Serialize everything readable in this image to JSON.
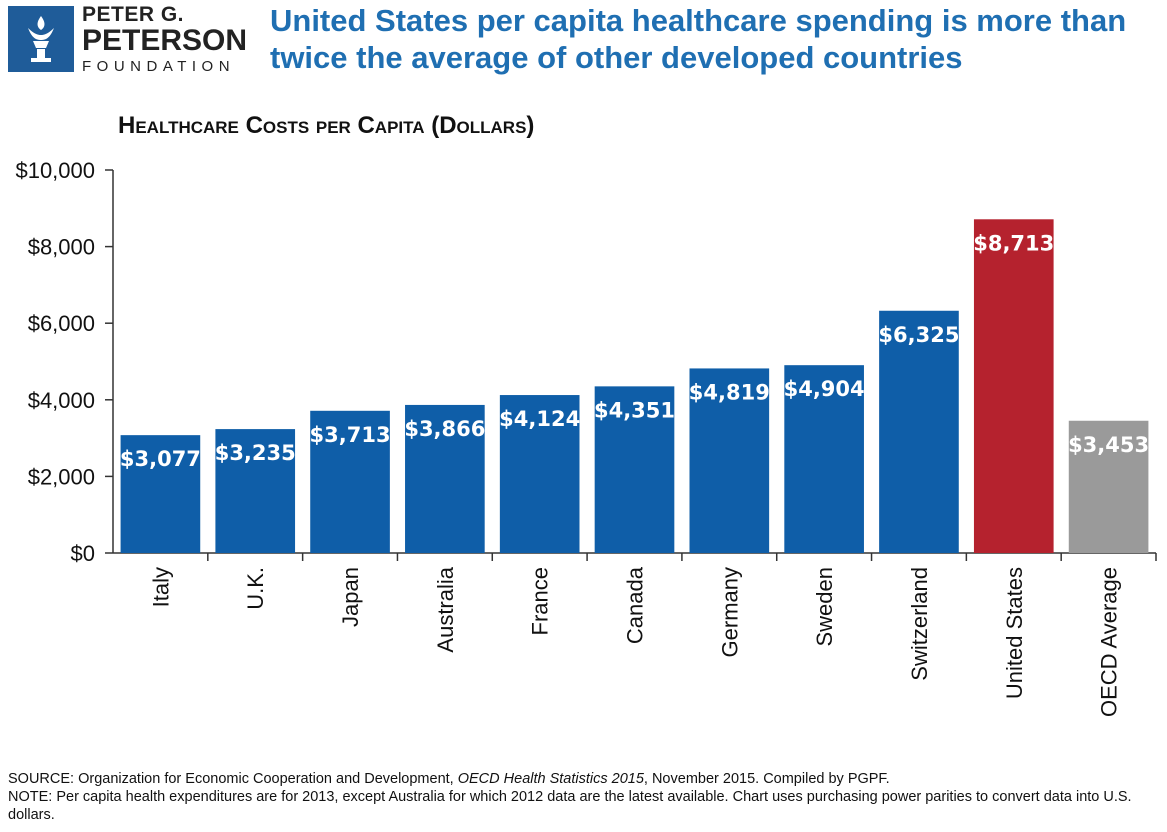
{
  "header": {
    "logo_line1": "PETER G.",
    "logo_line2": "PETERSON",
    "logo_line3": "FOUNDATION",
    "headline": "United States per capita healthcare spending is more than twice the average of other developed countries"
  },
  "colors": {
    "bar_default": "#0f5ea8",
    "bar_highlight": "#b5222e",
    "bar_average": "#9a9a9a",
    "logo_bg": "#1f5c99",
    "headline": "#1f6fb2"
  },
  "chart_data": {
    "type": "bar",
    "title": "Healthcare Costs per Capita (Dollars)",
    "xlabel": "",
    "ylabel": "",
    "ylim": [
      0,
      10000
    ],
    "yticks": [
      0,
      2000,
      4000,
      6000,
      8000,
      10000
    ],
    "ytick_labels": [
      "$0",
      "$2,000",
      "$4,000",
      "$6,000",
      "$8,000",
      "$10,000"
    ],
    "grid": false,
    "categories": [
      "Italy",
      "U.K.",
      "Japan",
      "Australia",
      "France",
      "Canada",
      "Germany",
      "Sweden",
      "Switzerland",
      "United States",
      "OECD Average"
    ],
    "values": [
      3077,
      3235,
      3713,
      3866,
      4124,
      4351,
      4819,
      4904,
      6325,
      8713,
      3453
    ],
    "data_labels": [
      "$3,077",
      "$3,235",
      "$3,713",
      "$3,866",
      "$4,124",
      "$4,351",
      "$4,819",
      "$4,904",
      "$6,325",
      "$8,713",
      "$3,453"
    ],
    "bar_color_keys": [
      "default",
      "default",
      "default",
      "default",
      "default",
      "default",
      "default",
      "default",
      "default",
      "highlight",
      "average"
    ]
  },
  "footer": {
    "source_prefix": "SOURCE: Organization for Economic Cooperation and Development, ",
    "source_title": "OECD Health Statistics 2015",
    "source_suffix": ", November 2015. Compiled by PGPF.",
    "note": "NOTE: Per capita health expenditures are for 2013, except Australia for which 2012 data are the latest available. Chart uses purchasing power parities to convert data into U.S. dollars."
  }
}
